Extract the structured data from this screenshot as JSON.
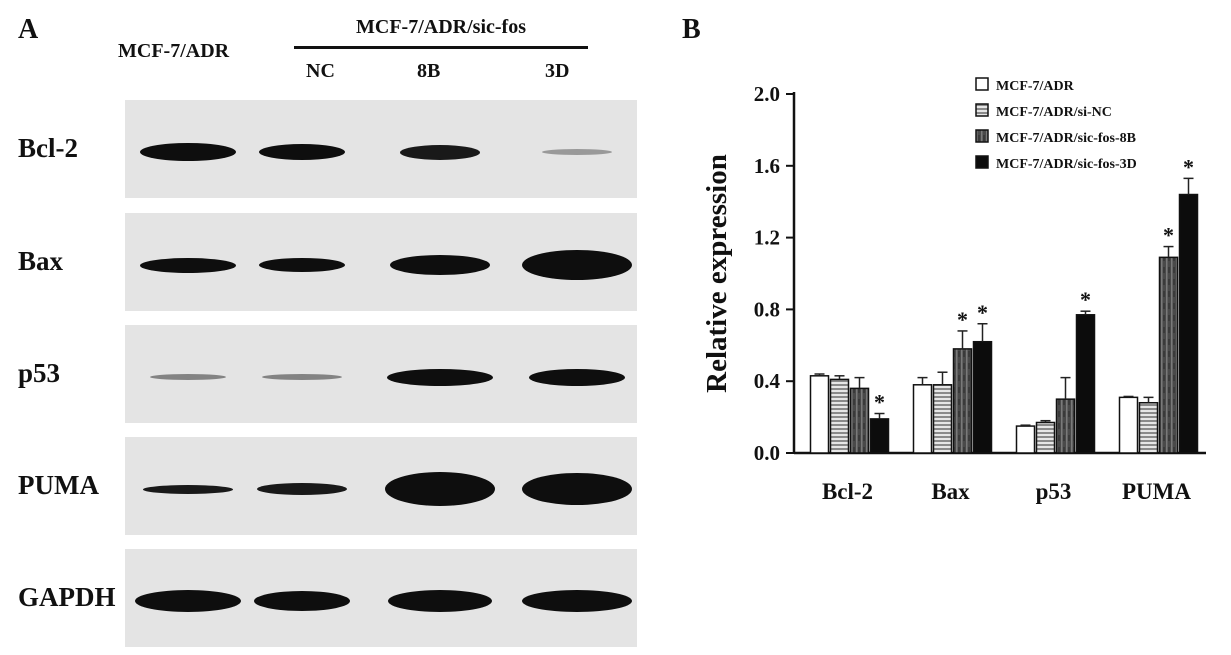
{
  "panels": {
    "a": "A",
    "b": "B"
  },
  "blot": {
    "group_label": "MCF-7/ADR/sic-fos",
    "lane_labels": [
      "MCF-7/ADR",
      "NC",
      "8B",
      "3D"
    ],
    "rows": [
      {
        "label": "Bcl-2",
        "bands": [
          {
            "w": 96,
            "h": 18,
            "o": 1.0
          },
          {
            "w": 86,
            "h": 16,
            "o": 1.0
          },
          {
            "w": 80,
            "h": 15,
            "o": 0.95
          },
          {
            "w": 70,
            "h": 6,
            "o": 0.35
          }
        ]
      },
      {
        "label": "Bax",
        "bands": [
          {
            "w": 96,
            "h": 15,
            "o": 1.0
          },
          {
            "w": 86,
            "h": 14,
            "o": 1.0
          },
          {
            "w": 100,
            "h": 20,
            "o": 1.0
          },
          {
            "w": 110,
            "h": 30,
            "o": 1.0
          }
        ]
      },
      {
        "label": "p53",
        "bands": [
          {
            "w": 76,
            "h": 6,
            "o": 0.45
          },
          {
            "w": 80,
            "h": 6,
            "o": 0.45
          },
          {
            "w": 106,
            "h": 17,
            "o": 1.0
          },
          {
            "w": 96,
            "h": 17,
            "o": 1.0
          }
        ]
      },
      {
        "label": "PUMA",
        "bands": [
          {
            "w": 90,
            "h": 9,
            "o": 0.95
          },
          {
            "w": 90,
            "h": 12,
            "o": 0.95
          },
          {
            "w": 110,
            "h": 34,
            "o": 1.0
          },
          {
            "w": 110,
            "h": 32,
            "o": 1.0
          }
        ]
      },
      {
        "label": "GAPDH",
        "bands": [
          {
            "w": 106,
            "h": 22,
            "o": 1.0
          },
          {
            "w": 96,
            "h": 20,
            "o": 1.0
          },
          {
            "w": 104,
            "h": 22,
            "o": 1.0
          },
          {
            "w": 110,
            "h": 22,
            "o": 1.0
          }
        ]
      }
    ]
  },
  "chart_data": {
    "type": "bar",
    "categories": [
      "Bcl-2",
      "Bax",
      "p53",
      "PUMA"
    ],
    "ylabel": "Relative expression",
    "ylim": [
      0,
      2.0
    ],
    "yticks": [
      "0.0",
      "0.4",
      "0.8",
      "1.2",
      "1.6",
      "2.0"
    ],
    "legend_position": "top-right",
    "significance_marker": "*",
    "series": [
      {
        "name": "MCF-7/ADR",
        "fill": "#ffffff",
        "pattern": "none",
        "values": [
          0.43,
          0.38,
          0.15,
          0.31
        ],
        "errors": [
          0.01,
          0.04,
          0.005,
          0.005
        ],
        "significant": [
          false,
          false,
          false,
          false
        ]
      },
      {
        "name": "MCF-7/ADR/si-NC",
        "fill": "#b8b8b8",
        "pattern": "horizontal-lines",
        "values": [
          0.41,
          0.38,
          0.17,
          0.28
        ],
        "errors": [
          0.02,
          0.07,
          0.01,
          0.03
        ],
        "significant": [
          false,
          false,
          false,
          false
        ]
      },
      {
        "name": "MCF-7/ADR/sic-fos-8B",
        "fill": "#5a5a5a",
        "pattern": "vertical-texture",
        "values": [
          0.36,
          0.58,
          0.3,
          1.09
        ],
        "errors": [
          0.06,
          0.1,
          0.12,
          0.06
        ],
        "significant": [
          false,
          true,
          false,
          true
        ]
      },
      {
        "name": "MCF-7/ADR/sic-fos-3D",
        "fill": "#0c0c0c",
        "pattern": "none",
        "values": [
          0.19,
          0.62,
          0.77,
          1.44
        ],
        "errors": [
          0.03,
          0.1,
          0.02,
          0.09
        ],
        "significant": [
          true,
          true,
          true,
          true
        ]
      }
    ]
  }
}
